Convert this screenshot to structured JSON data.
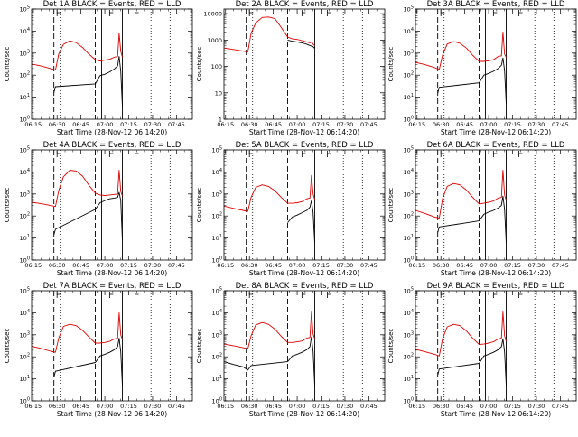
{
  "figure": {
    "x_tick_labels": [
      "06:15",
      "06:30",
      "06:45",
      "07:00",
      "07:15",
      "07:30",
      "07:45"
    ],
    "x_label": "Start Time (28-Nov-12 06:14:20)",
    "y_label": "Counts/sec",
    "series_colors": {
      "events": "#000000",
      "lld": "#e00000"
    },
    "dashed_line_times": [
      "06:28",
      "06:54"
    ],
    "solid_line_times": [
      "06:58",
      "07:11"
    ],
    "dotted_line_times": [
      "06:32",
      "07:29",
      "07:41"
    ],
    "flag_times": [
      "06:30",
      "07:03",
      "07:19"
    ]
  },
  "chart_data": [
    {
      "type": "line",
      "title": "Det 1A BLACK = Events, RED = LLD",
      "yscale": "log",
      "ylim": [
        1,
        100000
      ],
      "y_tick_labels": [
        "10^0",
        "10^1",
        "10^2",
        "10^3",
        "10^4",
        "10^5"
      ],
      "xlim": [
        "06:14",
        "07:55"
      ],
      "series": [
        {
          "role": "lld",
          "color": "#e00000",
          "x": [
            "06:14",
            "06:20",
            "06:26",
            "06:29",
            "06:31",
            "06:34",
            "06:38",
            "06:42",
            "06:46",
            "06:50",
            "06:54",
            "06:57",
            "07:00",
            "07:03",
            "07:06",
            "07:08",
            "07:09",
            "07:10",
            "07:11"
          ],
          "values": [
            320,
            260,
            200,
            170,
            900,
            2500,
            3600,
            3000,
            1800,
            900,
            500,
            430,
            480,
            520,
            650,
            700,
            8000,
            1200,
            650
          ]
        },
        {
          "role": "events",
          "color": "#000000",
          "x": [
            "06:28",
            "06:29",
            "06:54",
            "06:57",
            "07:00",
            "07:03",
            "07:06",
            "07:08",
            "07:09",
            "07:10",
            "07:11"
          ],
          "values": [
            16,
            30,
            40,
            95,
            110,
            140,
            190,
            260,
            700,
            150,
            4
          ]
        }
      ]
    },
    {
      "type": "line",
      "title": "Det 2A BLACK = Events, RED = LLD",
      "yscale": "log",
      "ylim": [
        1,
        15000
      ],
      "y_tick_labels": [
        "1",
        "10",
        "100",
        "1000",
        "10000"
      ],
      "xlim": [
        "06:14",
        "07:55"
      ],
      "series": [
        {
          "role": "lld",
          "color": "#e00000",
          "x": [
            "06:14",
            "06:20",
            "06:26",
            "06:29",
            "06:31",
            "06:34",
            "06:38",
            "06:42",
            "06:46",
            "06:50",
            "06:54",
            "06:57",
            "07:00",
            "07:03",
            "07:06",
            "07:08",
            "07:09",
            "07:10",
            "07:11"
          ],
          "values": [
            500,
            440,
            380,
            350,
            1800,
            4500,
            7200,
            7500,
            6500,
            3000,
            1300,
            1100,
            1050,
            950,
            850,
            780,
            850,
            700,
            620
          ]
        },
        {
          "role": "events",
          "color": "#000000",
          "x": [
            "06:54",
            "06:57",
            "07:00",
            "07:03",
            "07:06",
            "07:08",
            "07:10",
            "07:11"
          ],
          "values": [
            1000,
            900,
            850,
            780,
            700,
            620,
            560,
            480
          ]
        }
      ]
    },
    {
      "type": "line",
      "title": "Det 3A BLACK = Events, RED = LLD",
      "yscale": "log",
      "ylim": [
        1,
        100000
      ],
      "y_tick_labels": [
        "10^0",
        "10^1",
        "10^2",
        "10^3",
        "10^4",
        "10^5"
      ],
      "xlim": [
        "06:14",
        "07:55"
      ],
      "series": [
        {
          "role": "lld",
          "color": "#e00000",
          "x": [
            "06:14",
            "06:20",
            "06:26",
            "06:29",
            "06:31",
            "06:34",
            "06:38",
            "06:42",
            "06:46",
            "06:50",
            "06:54",
            "06:57",
            "07:00",
            "07:03",
            "07:06",
            "07:08",
            "07:09",
            "07:10",
            "07:11"
          ],
          "values": [
            380,
            300,
            220,
            180,
            800,
            2600,
            3300,
            2800,
            1700,
            800,
            420,
            420,
            450,
            500,
            700,
            750,
            9000,
            900,
            650
          ]
        },
        {
          "role": "events",
          "color": "#000000",
          "x": [
            "06:28",
            "06:29",
            "06:54",
            "06:57",
            "07:00",
            "07:03",
            "07:06",
            "07:08",
            "07:09",
            "07:10",
            "07:11"
          ],
          "values": [
            15,
            28,
            45,
            100,
            120,
            150,
            200,
            280,
            600,
            160,
            5
          ]
        }
      ]
    },
    {
      "type": "line",
      "title": "Det 4A BLACK = Events, RED = LLD",
      "yscale": "log",
      "ylim": [
        1,
        100000
      ],
      "y_tick_labels": [
        "10^0",
        "10^1",
        "10^2",
        "10^3",
        "10^4",
        "10^5"
      ],
      "xlim": [
        "06:14",
        "07:55"
      ],
      "series": [
        {
          "role": "lld",
          "color": "#e00000",
          "x": [
            "06:14",
            "06:20",
            "06:26",
            "06:29",
            "06:31",
            "06:34",
            "06:38",
            "06:42",
            "06:46",
            "06:50",
            "06:54",
            "06:57",
            "07:00",
            "07:03",
            "07:06",
            "07:08",
            "07:09",
            "07:10",
            "07:11"
          ],
          "values": [
            420,
            360,
            300,
            270,
            1400,
            6000,
            12000,
            11000,
            6500,
            2500,
            1100,
            900,
            850,
            900,
            950,
            1000,
            12000,
            1300,
            800
          ]
        },
        {
          "role": "events",
          "color": "#000000",
          "x": [
            "06:28",
            "06:29",
            "06:54",
            "06:57",
            "07:00",
            "07:03",
            "07:06",
            "07:08",
            "07:09",
            "07:10",
            "07:11"
          ],
          "values": [
            14,
            25,
            200,
            400,
            500,
            600,
            650,
            700,
            1200,
            500,
            8
          ]
        }
      ]
    },
    {
      "type": "line",
      "title": "Det 5A BLACK = Events, RED = LLD",
      "yscale": "log",
      "ylim": [
        1,
        100000
      ],
      "y_tick_labels": [
        "10^0",
        "10^1",
        "10^2",
        "10^3",
        "10^4",
        "10^5"
      ],
      "xlim": [
        "06:14",
        "07:55"
      ],
      "series": [
        {
          "role": "lld",
          "color": "#e00000",
          "x": [
            "06:14",
            "06:20",
            "06:26",
            "06:29",
            "06:31",
            "06:34",
            "06:38",
            "06:42",
            "06:46",
            "06:50",
            "06:54",
            "06:57",
            "07:00",
            "07:03",
            "07:06",
            "07:08",
            "07:09",
            "07:10",
            "07:11"
          ],
          "values": [
            280,
            220,
            180,
            160,
            700,
            2000,
            2600,
            2200,
            1400,
            700,
            380,
            380,
            400,
            450,
            600,
            650,
            7000,
            1000,
            550
          ]
        },
        {
          "role": "events",
          "color": "#000000",
          "x": [
            "06:54",
            "06:57",
            "07:00",
            "07:03",
            "07:06",
            "07:08",
            "07:09",
            "07:10",
            "07:11"
          ],
          "values": [
            50,
            90,
            110,
            140,
            180,
            250,
            500,
            140,
            6
          ]
        }
      ]
    },
    {
      "type": "line",
      "title": "Det 6A BLACK = Events, RED = LLD",
      "yscale": "log",
      "ylim": [
        1,
        100000
      ],
      "y_tick_labels": [
        "10^0",
        "10^1",
        "10^2",
        "10^3",
        "10^4",
        "10^5"
      ],
      "xlim": [
        "06:14",
        "07:55"
      ],
      "series": [
        {
          "role": "lld",
          "color": "#e00000",
          "x": [
            "06:14",
            "06:20",
            "06:26",
            "06:29",
            "06:31",
            "06:34",
            "06:38",
            "06:42",
            "06:46",
            "06:50",
            "06:54",
            "06:57",
            "07:00",
            "07:03",
            "07:06",
            "07:08",
            "07:09",
            "07:10",
            "07:11"
          ],
          "values": [
            180,
            130,
            90,
            80,
            600,
            2200,
            3000,
            2600,
            1500,
            700,
            350,
            380,
            420,
            480,
            650,
            700,
            12000,
            900,
            500
          ]
        },
        {
          "role": "events",
          "color": "#000000",
          "x": [
            "06:28",
            "06:29",
            "06:54",
            "06:57",
            "07:00",
            "07:03",
            "07:06",
            "07:08",
            "07:09",
            "07:10",
            "07:11"
          ],
          "values": [
            18,
            32,
            60,
            120,
            150,
            180,
            230,
            300,
            800,
            200,
            6
          ]
        }
      ]
    },
    {
      "type": "line",
      "title": "Det 7A BLACK = Events, RED = LLD",
      "yscale": "log",
      "ylim": [
        1,
        100000
      ],
      "y_tick_labels": [
        "10^0",
        "10^1",
        "10^2",
        "10^3",
        "10^4",
        "10^5"
      ],
      "xlim": [
        "06:14",
        "07:55"
      ],
      "series": [
        {
          "role": "lld",
          "color": "#e00000",
          "x": [
            "06:14",
            "06:20",
            "06:26",
            "06:29",
            "06:31",
            "06:34",
            "06:38",
            "06:42",
            "06:46",
            "06:50",
            "06:54",
            "06:57",
            "07:00",
            "07:03",
            "07:06",
            "07:08",
            "07:09",
            "07:10",
            "07:11"
          ],
          "values": [
            300,
            240,
            180,
            160,
            700,
            2400,
            3000,
            2600,
            1600,
            800,
            420,
            420,
            450,
            500,
            650,
            700,
            10000,
            1000,
            600
          ]
        },
        {
          "role": "events",
          "color": "#000000",
          "x": [
            "06:28",
            "06:29",
            "06:54",
            "06:57",
            "07:00",
            "07:03",
            "07:06",
            "07:08",
            "07:09",
            "07:10",
            "07:11"
          ],
          "values": [
            12,
            22,
            55,
            110,
            130,
            160,
            210,
            290,
            700,
            170,
            5
          ]
        }
      ]
    },
    {
      "type": "line",
      "title": "Det 8A BLACK = Events, RED = LLD",
      "yscale": "log",
      "ylim": [
        1,
        100000
      ],
      "y_tick_labels": [
        "10^0",
        "10^1",
        "10^2",
        "10^3",
        "10^4",
        "10^5"
      ],
      "xlim": [
        "06:14",
        "07:55"
      ],
      "series": [
        {
          "role": "lld",
          "color": "#e00000",
          "x": [
            "06:14",
            "06:20",
            "06:26",
            "06:29",
            "06:31",
            "06:34",
            "06:38",
            "06:42",
            "06:46",
            "06:50",
            "06:54",
            "06:57",
            "07:00",
            "07:03",
            "07:06",
            "07:08",
            "07:09",
            "07:10",
            "07:11"
          ],
          "values": [
            380,
            320,
            260,
            230,
            900,
            2800,
            3600,
            3000,
            1800,
            850,
            450,
            450,
            480,
            520,
            700,
            750,
            11000,
            1100,
            650
          ]
        },
        {
          "role": "events",
          "color": "#000000",
          "x": [
            "06:14",
            "06:20",
            "06:26",
            "06:29",
            "06:31",
            "06:54",
            "06:57",
            "07:00",
            "07:03",
            "07:06",
            "07:08",
            "07:09",
            "07:10",
            "07:11"
          ],
          "values": [
            60,
            45,
            35,
            25,
            40,
            60,
            110,
            130,
            160,
            210,
            290,
            800,
            180,
            5
          ]
        }
      ]
    },
    {
      "type": "line",
      "title": "Det 9A BLACK = Events, RED = LLD",
      "yscale": "log",
      "ylim": [
        1,
        100000
      ],
      "y_tick_labels": [
        "10^0",
        "10^1",
        "10^2",
        "10^3",
        "10^4",
        "10^5"
      ],
      "xlim": [
        "06:14",
        "07:55"
      ],
      "series": [
        {
          "role": "lld",
          "color": "#e00000",
          "x": [
            "06:14",
            "06:20",
            "06:26",
            "06:29",
            "06:31",
            "06:34",
            "06:38",
            "06:42",
            "06:46",
            "06:50",
            "06:54",
            "06:57",
            "07:00",
            "07:03",
            "07:06",
            "07:08",
            "07:09",
            "07:10",
            "07:11"
          ],
          "values": [
            220,
            170,
            130,
            110,
            650,
            2300,
            3000,
            2600,
            1500,
            700,
            360,
            380,
            420,
            480,
            650,
            700,
            11000,
            900,
            500
          ]
        },
        {
          "role": "events",
          "color": "#000000",
          "x": [
            "06:28",
            "06:29",
            "06:54",
            "06:57",
            "07:00",
            "07:03",
            "07:06",
            "07:08",
            "07:09",
            "07:10",
            "07:11"
          ],
          "values": [
            15,
            28,
            50,
            110,
            130,
            160,
            210,
            290,
            650,
            170,
            5
          ]
        }
      ]
    }
  ]
}
